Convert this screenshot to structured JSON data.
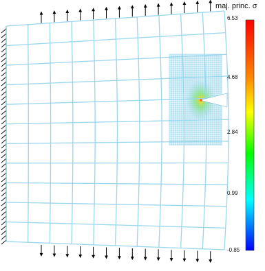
{
  "legend": {
    "title": "maj. princ. σ",
    "ticks": [
      "6.53",
      "4.68",
      "2.84",
      "0.99",
      "-0.85"
    ]
  },
  "colors": {
    "coarse_mesh": "#9ad6ee",
    "fine_mesh": "#7fcbe6",
    "arrow": "#000000",
    "support": "#000000",
    "colorbar_stops": [
      "#ff0000",
      "#ff8800",
      "#ffff00",
      "#00ff00",
      "#00ffff",
      "#0000ff"
    ]
  },
  "icons": {
    "load_top": "arrow-up-icon",
    "load_bottom": "arrow-down-icon",
    "support": "fixed-support-hatch-icon"
  }
}
